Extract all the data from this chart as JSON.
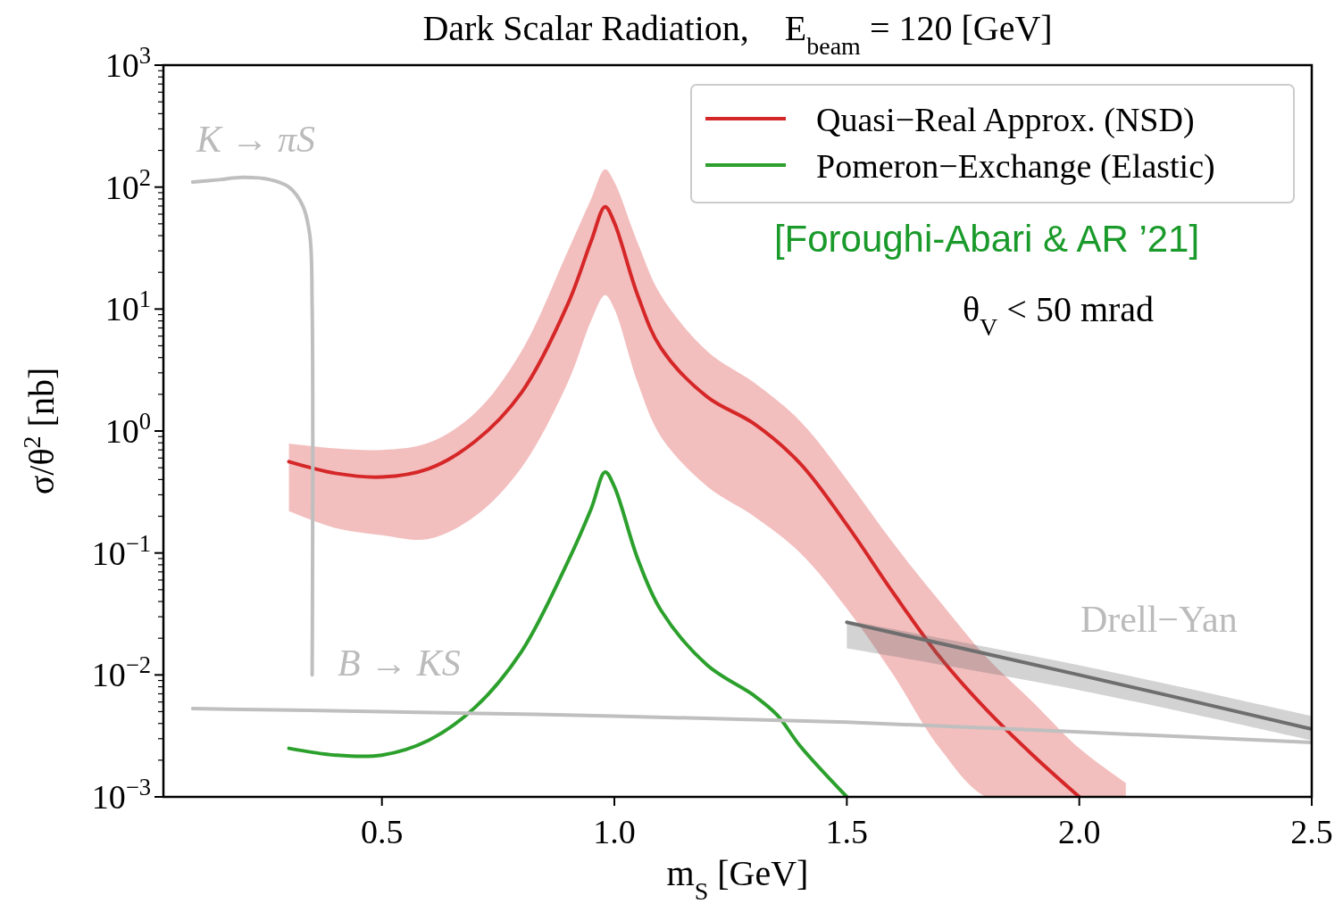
{
  "chart_data": {
    "type": "line",
    "title": "Dark Scalar Radiation,    E$_{beam}$ = 120 [GeV]",
    "xlabel": "m$_{S}$ [GeV]",
    "ylabel": "σ/θ$^{2}$ [nb]",
    "log": "y",
    "xlim": [
      0.03,
      2.5
    ],
    "ylim": [
      0.001,
      1000
    ],
    "xticks": [
      0.5,
      {
        "value": 1,
        "label": "1.0"
      },
      1.5,
      {
        "value": 2,
        "label": "2.0"
      },
      2.5
    ],
    "yticks": [
      {
        "value": 0.001,
        "label": "10$^{−3}$"
      },
      {
        "value": 0.01,
        "label": "10$^{−2}$"
      },
      {
        "value": 0.1,
        "label": "10$^{−1}$"
      },
      {
        "value": 1,
        "label": "10$^{0}$"
      },
      {
        "value": 10,
        "label": "10$^{1}$"
      },
      {
        "value": 100,
        "label": "10$^{2}$"
      },
      {
        "value": 1000,
        "label": "10$^{3}$"
      }
    ],
    "grid": false,
    "legend": "top right",
    "line_style": "solid",
    "marker": "none",
    "series": [
      {
        "name": "Quasi−Real Approx. (NSD)",
        "color": "#d62728",
        "x": [
          0.3,
          0.4,
          0.5,
          0.6,
          0.7,
          0.8,
          0.9,
          0.95,
          0.98,
          1.0,
          1.05,
          1.1,
          1.2,
          1.3,
          1.4,
          1.5,
          1.6,
          1.7,
          1.8,
          1.9,
          2.0,
          2.1
        ],
        "values": [
          0.56,
          0.45,
          0.42,
          0.49,
          0.82,
          2.06,
          11,
          36,
          69,
          51,
          13,
          4.8,
          1.9,
          1.15,
          0.54,
          0.17,
          0.047,
          0.014,
          0.0052,
          0.0022,
          0.001,
          null
        ],
        "lower": [
          0.22,
          0.16,
          0.14,
          0.13,
          0.2,
          0.5,
          2.5,
          8,
          13,
          10,
          2.5,
          0.9,
          0.35,
          0.2,
          0.1,
          0.035,
          0.01,
          0.0025,
          0.001,
          0.001,
          0.001,
          0.001
        ],
        "upper": [
          0.79,
          0.72,
          0.7,
          0.8,
          1.4,
          4.5,
          30,
          80,
          140,
          110,
          35,
          13,
          4.5,
          2.5,
          1.2,
          0.4,
          0.12,
          0.04,
          0.014,
          0.006,
          0.0025,
          0.0013
        ]
      },
      {
        "name": "Pomeron−Exchange (Elastic)",
        "color": "#2ca02c",
        "x": [
          0.3,
          0.4,
          0.5,
          0.6,
          0.7,
          0.8,
          0.9,
          0.95,
          0.98,
          1.0,
          1.05,
          1.1,
          1.2,
          1.3,
          1.35,
          1.4,
          1.5
        ],
        "values": [
          0.0025,
          0.0022,
          0.0022,
          0.0029,
          0.0054,
          0.0155,
          0.085,
          0.23,
          0.46,
          0.35,
          0.09,
          0.034,
          0.012,
          0.0068,
          0.0047,
          0.0026,
          0.001
        ]
      },
      {
        "color": "#bfbfbf",
        "x": [
          0.093,
          0.15,
          0.2,
          0.26,
          0.3,
          0.33,
          0.345,
          0.35,
          0.35
        ],
        "values": [
          110,
          115,
          120,
          115,
          100,
          70,
          40,
          10,
          0.01
        ]
      },
      {
        "color": "#bfbfbf",
        "x": [
          0.093,
          0.5,
          1.0,
          1.5,
          2.0,
          2.5
        ],
        "values": [
          0.0053,
          0.005,
          0.0046,
          0.0041,
          0.0034,
          0.0028
        ]
      },
      {
        "color": "#6e6e6e",
        "x": [
          1.5,
          2.0,
          2.5
        ],
        "values": [
          0.027,
          0.01,
          0.0036
        ],
        "lower": [
          0.0165,
          0.0075,
          0.0029
        ],
        "upper": [
          0.028,
          0.012,
          0.0046
        ]
      }
    ],
    "annotations": [
      "K → πS",
      "B → KS",
      "Drell−Yan",
      "[Foroughi-Abari & AR ’21]",
      "θ$_{V}$ < 50 mrad"
    ]
  }
}
